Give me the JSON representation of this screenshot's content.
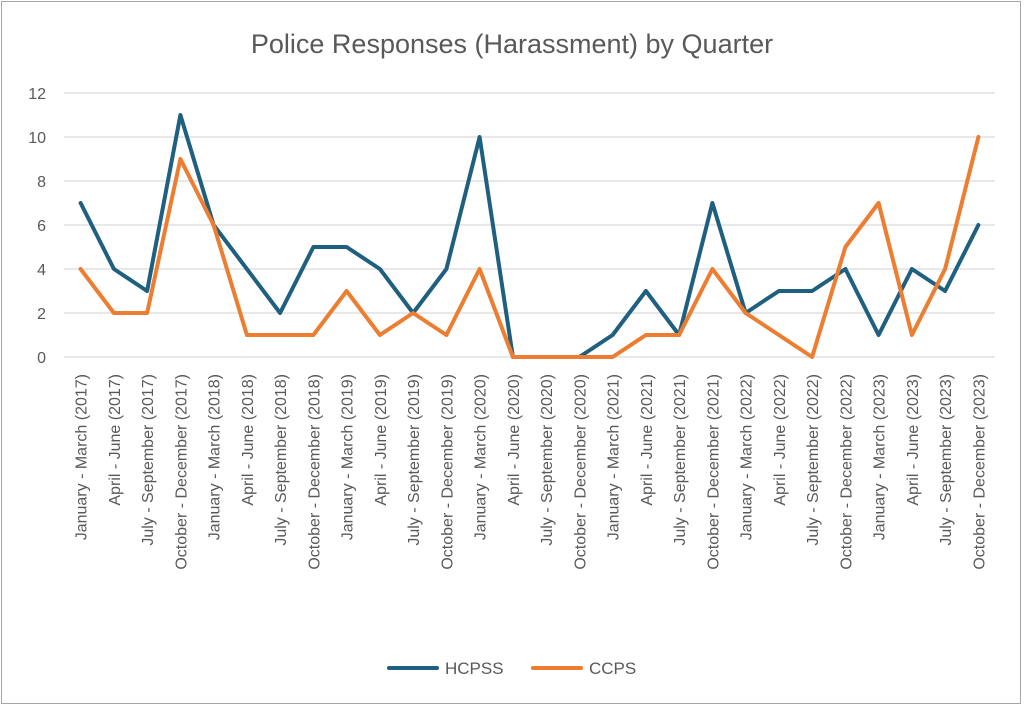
{
  "chart_data": {
    "type": "line",
    "title": "Police Responses (Harassment) by Quarter",
    "xlabel": "",
    "ylabel": "",
    "ylim": [
      0,
      12
    ],
    "yticks": [
      0,
      2,
      4,
      6,
      8,
      10,
      12
    ],
    "grid": true,
    "legend_position": "bottom",
    "categories": [
      "January - March (2017)",
      "April - June (2017)",
      "July - September (2017)",
      "October - December (2017)",
      "January - March (2018)",
      "April - June (2018)",
      "July - September (2018)",
      "October - December (2018)",
      "January - March (2019)",
      "April - June (2019)",
      "July - September (2019)",
      "October - December (2019)",
      "January - March (2020)",
      "April - June (2020)",
      "July - September (2020)",
      "October - December (2020)",
      "January - March (2021)",
      "April - June (2021)",
      "July - September (2021)",
      "October - December (2021)",
      "January - March (2022)",
      "April - June (2022)",
      "July - September (2022)",
      "October - December (2022)",
      "January - March (2023)",
      "April - June (2023)",
      "July - September (2023)",
      "October - December (2023)"
    ],
    "series": [
      {
        "name": "HCPSS",
        "color": "#1f5f7f",
        "values": [
          7,
          4,
          3,
          11,
          6,
          4,
          2,
          5,
          5,
          4,
          2,
          4,
          10,
          0,
          0,
          0,
          1,
          3,
          1,
          7,
          2,
          3,
          3,
          4,
          1,
          4,
          3,
          6
        ]
      },
      {
        "name": "CCPS",
        "color": "#ed7d31",
        "values": [
          4,
          2,
          2,
          9,
          6,
          1,
          1,
          1,
          3,
          1,
          2,
          1,
          4,
          0,
          0,
          0,
          0,
          1,
          1,
          4,
          2,
          1,
          0,
          5,
          7,
          1,
          4,
          10
        ]
      }
    ]
  }
}
